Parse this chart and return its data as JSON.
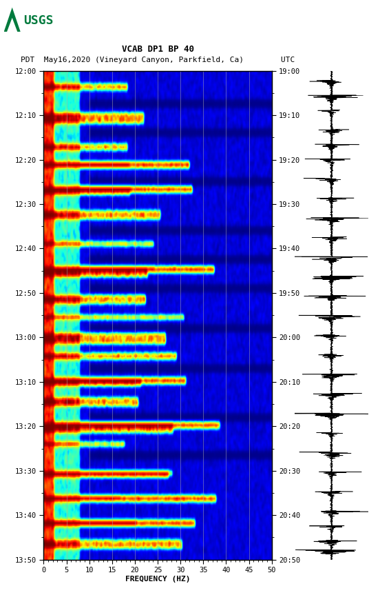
{
  "title_line1": "VCAB DP1 BP 40",
  "title_line2": "PDT  May16,2020 (Vineyard Canyon, Parkfield, Ca)        UTC",
  "xlabel": "FREQUENCY (HZ)",
  "xlim": [
    0,
    50
  ],
  "xticks": [
    0,
    5,
    10,
    15,
    20,
    25,
    30,
    35,
    40,
    45,
    50
  ],
  "left_yticks_labels": [
    "12:00",
    "12:10",
    "12:20",
    "12:30",
    "12:40",
    "12:50",
    "13:00",
    "13:10",
    "13:20",
    "13:30",
    "13:40",
    "13:50"
  ],
  "right_yticks_labels": [
    "19:00",
    "19:10",
    "19:20",
    "19:30",
    "19:40",
    "19:50",
    "20:00",
    "20:10",
    "20:20",
    "20:30",
    "20:40",
    "20:50"
  ],
  "background_color": "#ffffff",
  "spectrogram_cmap": "jet",
  "vertical_lines_freq": [
    5,
    10,
    15,
    20,
    25,
    30,
    35,
    40,
    45
  ],
  "usgs_color": "#007a3d",
  "fig_width": 5.52,
  "fig_height": 8.92
}
